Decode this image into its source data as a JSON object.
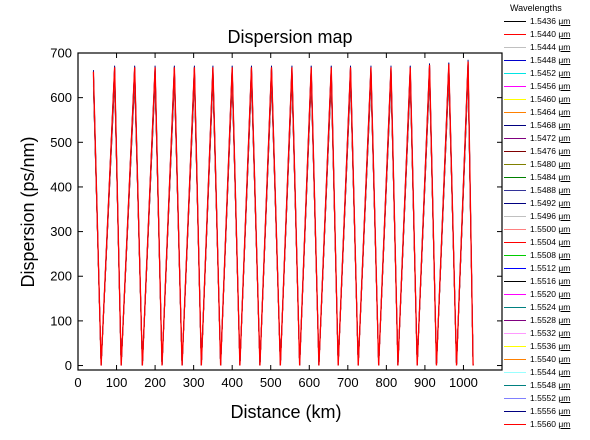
{
  "chart_data": {
    "type": "line",
    "title": "Dispersion map",
    "xlabel": "Distance (km)",
    "ylabel": "Dispersion (ps/nm)",
    "xlim": [
      0,
      1100
    ],
    "ylim": [
      -10,
      700
    ],
    "xticks": [
      0,
      100,
      200,
      300,
      400,
      500,
      600,
      700,
      800,
      900,
      1000
    ],
    "yticks": [
      0,
      100,
      200,
      300,
      400,
      500,
      600,
      700
    ],
    "grid": false,
    "legend_title": "Wavelengths",
    "legend_placement": "right",
    "legend_unit": "μm",
    "peaks_x": [
      40,
      95,
      147,
      200,
      250,
      302,
      350,
      400,
      450,
      502,
      555,
      605,
      657,
      707,
      760,
      812,
      862,
      912,
      962,
      1012
    ],
    "troughs_x": [
      60,
      112,
      167,
      218,
      270,
      320,
      370,
      420,
      472,
      525,
      575,
      625,
      675,
      727,
      780,
      830,
      880,
      930,
      982,
      1025
    ],
    "peak_values": [
      645,
      655,
      655,
      655,
      655,
      655,
      655,
      655,
      655,
      655,
      655,
      655,
      655,
      655,
      655,
      655,
      655,
      660,
      662,
      668
    ],
    "trough_value": 0,
    "series": [
      {
        "name": "1.5436",
        "color": "#000000"
      },
      {
        "name": "1.5440",
        "color": "#ff0000"
      },
      {
        "name": "1.5444",
        "color": "#c0c0c0"
      },
      {
        "name": "1.5448",
        "color": "#0000cc"
      },
      {
        "name": "1.5452",
        "color": "#00e5e5"
      },
      {
        "name": "1.5456",
        "color": "#ff00ff"
      },
      {
        "name": "1.5460",
        "color": "#ffff00"
      },
      {
        "name": "1.5464",
        "color": "#ff8000"
      },
      {
        "name": "1.5468",
        "color": "#000080"
      },
      {
        "name": "1.5472",
        "color": "#800080"
      },
      {
        "name": "1.5476",
        "color": "#800000"
      },
      {
        "name": "1.5480",
        "color": "#808000"
      },
      {
        "name": "1.5484",
        "color": "#008000"
      },
      {
        "name": "1.5488",
        "color": "#333399"
      },
      {
        "name": "1.5492",
        "color": "#000080"
      },
      {
        "name": "1.5496",
        "color": "#c0c0c0"
      },
      {
        "name": "1.5500",
        "color": "#ff8080"
      },
      {
        "name": "1.5504",
        "color": "#ff0000"
      },
      {
        "name": "1.5508",
        "color": "#00cc00"
      },
      {
        "name": "1.5512",
        "color": "#0000ff"
      },
      {
        "name": "1.5516",
        "color": "#000000"
      },
      {
        "name": "1.5520",
        "color": "#ff00ff"
      },
      {
        "name": "1.5524",
        "color": "#008080"
      },
      {
        "name": "1.5528",
        "color": "#800080"
      },
      {
        "name": "1.5532",
        "color": "#ff99ff"
      },
      {
        "name": "1.5536",
        "color": "#ffff00"
      },
      {
        "name": "1.5540",
        "color": "#ff8000"
      },
      {
        "name": "1.5544",
        "color": "#99ffff"
      },
      {
        "name": "1.5548",
        "color": "#008080"
      },
      {
        "name": "1.5552",
        "color": "#8080ff"
      },
      {
        "name": "1.5556",
        "color": "#000080"
      },
      {
        "name": "1.5560",
        "color": "#ff0000"
      }
    ]
  }
}
